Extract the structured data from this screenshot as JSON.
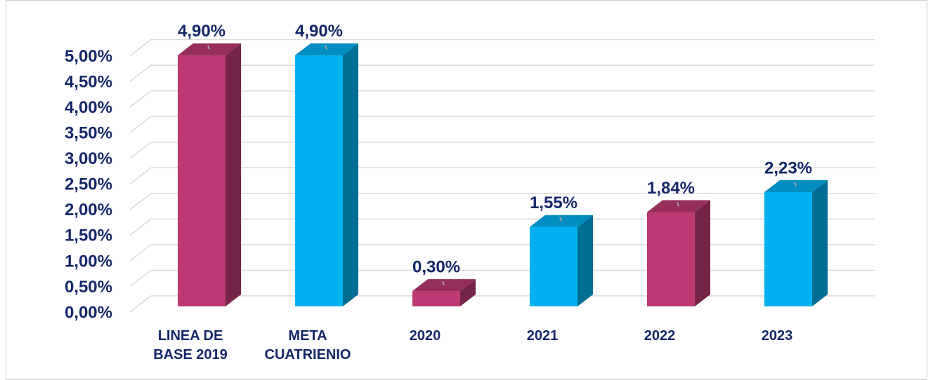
{
  "chart_data": {
    "type": "bar3d",
    "categories": [
      "LINEA DE BASE 2019",
      "META CUATRIENIO",
      "2020",
      "2021",
      "2022",
      "2023"
    ],
    "values": [
      4.9,
      4.9,
      0.3,
      1.55,
      1.84,
      2.23
    ],
    "value_labels": [
      "4,90%",
      "4,90%",
      "0,30%",
      "1,55%",
      "1,84%",
      "2,23%"
    ],
    "colors": [
      "#bc3a73",
      "#00b0f0",
      "#bc3a73",
      "#00b0f0",
      "#bc3a73",
      "#00b0f0"
    ],
    "ylim": [
      0,
      5.5
    ],
    "yticks": [
      {
        "value": 0,
        "label": "0,00%"
      },
      {
        "value": 0.5,
        "label": "0,50%"
      },
      {
        "value": 1,
        "label": "1,00%"
      },
      {
        "value": 1.5,
        "label": "1,50%"
      },
      {
        "value": 2,
        "label": "2,00%"
      },
      {
        "value": 2.5,
        "label": "2,50%"
      },
      {
        "value": 3,
        "label": "3,00%"
      },
      {
        "value": 3.5,
        "label": "3,50%"
      },
      {
        "value": 4,
        "label": "4,00%"
      },
      {
        "value": 4.5,
        "label": "4,50%"
      },
      {
        "value": 5,
        "label": "5,00%"
      }
    ],
    "grid": true
  }
}
